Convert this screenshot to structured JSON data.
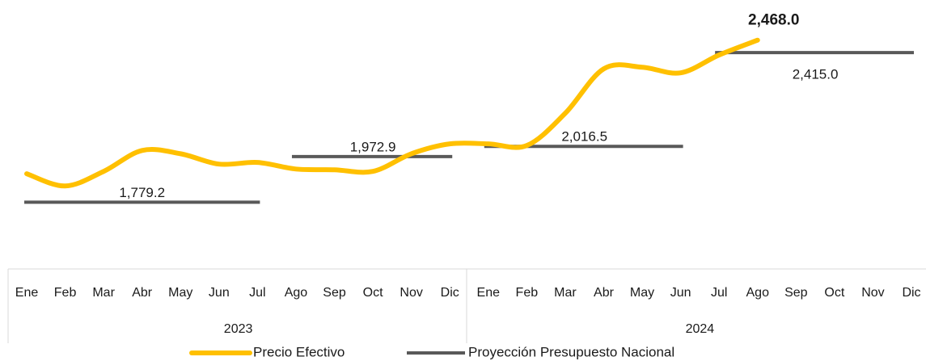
{
  "chart_data": {
    "type": "line",
    "categories": [
      "Ene",
      "Feb",
      "Mar",
      "Abr",
      "May",
      "Jun",
      "Jul",
      "Ago",
      "Sep",
      "Oct",
      "Nov",
      "Dic",
      "Ene",
      "Feb",
      "Mar",
      "Abr",
      "May",
      "Jun",
      "Jul",
      "Ago",
      "Sep",
      "Oct",
      "Nov",
      "Dic"
    ],
    "groups": [
      "2023",
      "2024"
    ],
    "ylim": [
      1540,
      2570
    ],
    "series": [
      {
        "name": "Precio Efectivo",
        "color": "#FFC000",
        "values": [
          1900,
          1848,
          1910,
          1999,
          1985,
          1941,
          1948,
          1920,
          1917,
          1910,
          1985,
          2027,
          2027,
          2020,
          2157,
          2346,
          2353,
          2329,
          2405,
          2468,
          null,
          null,
          null,
          null
        ],
        "value_labels": [
          null,
          null,
          null,
          null,
          null,
          null,
          null,
          null,
          null,
          null,
          null,
          null,
          null,
          null,
          null,
          null,
          null,
          null,
          null,
          "2,468.0",
          null,
          null,
          null,
          null
        ]
      },
      {
        "name": "Proyección Presupuesto Nacional",
        "color": "#595959",
        "values": [
          1779.2,
          1779.2,
          1779.2,
          1779.2,
          1779.2,
          1779.2,
          1779.2,
          1972.9,
          1972.9,
          1972.9,
          1972.9,
          1972.9,
          2016.5,
          2016.5,
          2016.5,
          2016.5,
          2016.5,
          2016.5,
          2415.0,
          2415.0,
          2415.0,
          2415.0,
          2415.0,
          2415.0
        ],
        "value_labels": [
          "1,779.2",
          null,
          null,
          null,
          null,
          null,
          null,
          "1,972.9",
          null,
          null,
          null,
          null,
          "2,016.5",
          null,
          null,
          null,
          null,
          null,
          "2,415.0",
          null,
          null,
          null,
          null,
          null
        ]
      }
    ]
  }
}
